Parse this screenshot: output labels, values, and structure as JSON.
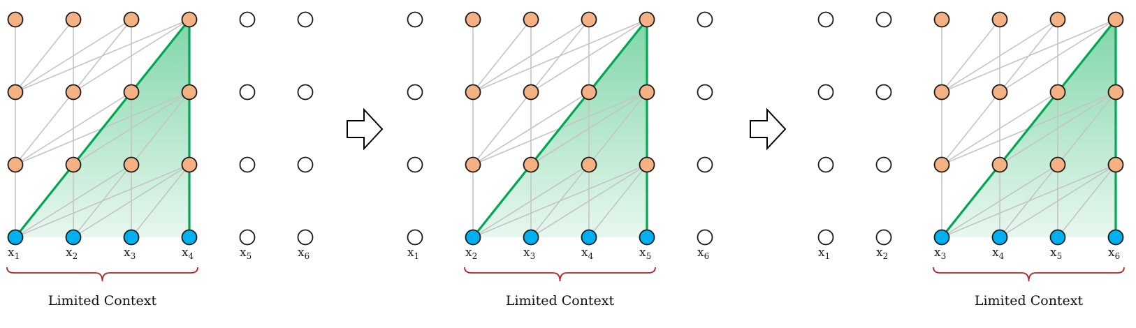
{
  "colors": {
    "hidden_node": "#F4B183",
    "input_node": "#00B0F0",
    "empty_node": "#FFFFFF",
    "node_stroke": "#1A1A1A",
    "edge": "#C4C4C4",
    "path": "#00A651",
    "shade_top": "#3CC07A",
    "brace": "#B22222",
    "arrow_fill": "#FFFFFF",
    "arrow_stroke": "#000000"
  },
  "panels": [
    {
      "labels": [
        {
          "base": "x",
          "sub": "1"
        },
        {
          "base": "x",
          "sub": "2"
        },
        {
          "base": "x",
          "sub": "3"
        },
        {
          "base": "x",
          "sub": "4"
        },
        {
          "base": "x",
          "sub": "5"
        },
        {
          "base": "x",
          "sub": "6"
        }
      ],
      "window": [
        0,
        3
      ],
      "context_label": "Limited Context"
    },
    {
      "labels": [
        {
          "base": "x",
          "sub": "1"
        },
        {
          "base": "x",
          "sub": "2"
        },
        {
          "base": "x",
          "sub": "3"
        },
        {
          "base": "x",
          "sub": "4"
        },
        {
          "base": "x",
          "sub": "5"
        },
        {
          "base": "x",
          "sub": "6"
        }
      ],
      "window": [
        1,
        4
      ],
      "context_label": "Limited Context"
    },
    {
      "labels": [
        {
          "base": "x",
          "sub": "1"
        },
        {
          "base": "x",
          "sub": "2"
        },
        {
          "base": "x",
          "sub": "3"
        },
        {
          "base": "x",
          "sub": "4"
        },
        {
          "base": "x",
          "sub": "5"
        },
        {
          "base": "x",
          "sub": "6"
        }
      ],
      "window": [
        2,
        5
      ],
      "context_label": "Limited Context"
    }
  ],
  "arrows": [
    {
      "name": "transition-arrow-1"
    },
    {
      "name": "transition-arrow-2"
    }
  ]
}
